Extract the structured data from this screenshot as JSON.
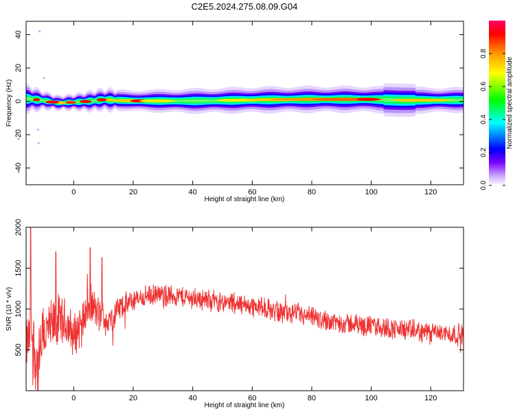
{
  "title": "C2E5.2024.275.08.09.G04",
  "chart_data": [
    {
      "type": "heatmap",
      "xlabel": "Height of straight line (km)",
      "ylabel": "Frequency (Hz)",
      "xlim": [
        -16,
        131
      ],
      "ylim": [
        -50,
        48
      ],
      "xticks": [
        0,
        20,
        40,
        60,
        80,
        100,
        120
      ],
      "yticks": [
        40,
        20,
        0,
        -20,
        -40
      ],
      "ridge_frequency_hz": [
        {
          "x": -15,
          "y": 1.5,
          "width": 3.0
        },
        {
          "x": -10,
          "y": 0.5,
          "width": 2.0
        },
        {
          "x": -5,
          "y": -1.0,
          "width": 1.6
        },
        {
          "x": 0,
          "y": -0.5,
          "width": 1.8
        },
        {
          "x": 5,
          "y": 0.0,
          "width": 2.2
        },
        {
          "x": 10,
          "y": 1.0,
          "width": 2.4
        },
        {
          "x": 20,
          "y": 0.3,
          "width": 2.6
        },
        {
          "x": 40,
          "y": 0.2,
          "width": 3.0
        },
        {
          "x": 60,
          "y": 0.8,
          "width": 3.2
        },
        {
          "x": 80,
          "y": 1.2,
          "width": 3.2
        },
        {
          "x": 100,
          "y": 1.2,
          "width": 3.2
        },
        {
          "x": 110,
          "y": 0.6,
          "width": 3.2
        },
        {
          "x": 131,
          "y": 0.8,
          "width": 3.0
        }
      ],
      "colorbar": {
        "label": "Normalized spectral amplitude",
        "ticks": [
          "0.0",
          "0.2",
          "0.4",
          "0.6",
          "0.8"
        ],
        "range": [
          0,
          1
        ],
        "colors": [
          "#ffffff",
          "#c9a3ff",
          "#7a00ff",
          "#0000ff",
          "#00ffff",
          "#00ff00",
          "#ffff00",
          "#ff9900",
          "#ff0000",
          "#ff0066"
        ]
      },
      "grid": false
    },
    {
      "type": "line",
      "xlabel": "Height of straight line (km)",
      "ylabel": "SNR (10 * v/v)",
      "xlim": [
        -16,
        131
      ],
      "ylim": [
        0,
        2000
      ],
      "xticks": [
        0,
        20,
        40,
        60,
        80,
        100,
        120
      ],
      "yticks": [
        2000,
        1500,
        1000,
        500
      ],
      "line_color": "#ee3333",
      "trend": {
        "x": [
          -16,
          -14,
          -12,
          -10,
          -8,
          -5,
          -2,
          0,
          3,
          6,
          9,
          12,
          15,
          20,
          25,
          30,
          35,
          40,
          45,
          50,
          55,
          60,
          70,
          80,
          90,
          100,
          110,
          120,
          131
        ],
        "y": [
          550,
          700,
          250,
          700,
          750,
          850,
          800,
          650,
          900,
          1050,
          900,
          850,
          1000,
          1100,
          1160,
          1170,
          1160,
          1130,
          1110,
          1090,
          1060,
          1040,
          960,
          890,
          830,
          790,
          750,
          710,
          680
        ],
        "noise_amplitude": [
          350,
          500,
          550,
          450,
          400,
          380,
          350,
          320,
          300,
          280,
          250,
          220,
          200,
          150,
          150,
          150,
          150,
          150,
          150,
          150,
          150,
          150,
          150,
          150,
          150,
          150,
          150,
          150,
          150
        ],
        "notable_peaks": [
          {
            "x": -14.5,
            "y": 2000
          },
          {
            "x": -6,
            "y": 1700
          },
          {
            "x": 5.5,
            "y": 1750
          },
          {
            "x": 9.5,
            "y": 1630
          }
        ]
      },
      "grid": false
    }
  ]
}
